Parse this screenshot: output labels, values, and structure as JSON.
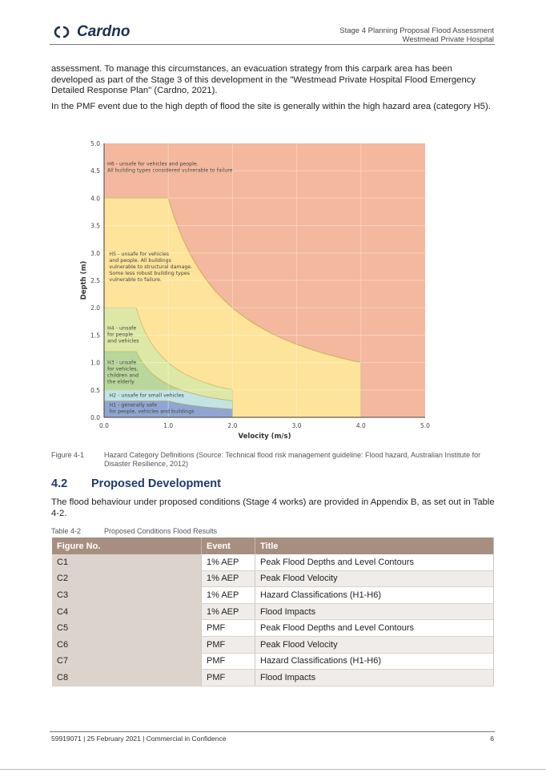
{
  "header": {
    "logo_text": "Cardno",
    "title_line1": "Stage 4 Planning Proposal Flood Assessment",
    "title_line2": "Westmead Private Hospital"
  },
  "body": {
    "para1": "assessment. To manage this circumstances, an evacuation strategy from this carpark area has been developed as part of the Stage 3 of this development in the \"Westmead Private Hospital Flood Emergency Detailed Response Plan\" (Cardno, 2021).",
    "para2": "In the PMF event due to the high depth of flood the site is generally within the high hazard area (category H5)."
  },
  "figure": {
    "label": "Figure 4-1",
    "caption": "Hazard Category Definitions (Source: Technical flood risk management guideline: Flood hazard, Australian Institute for Disaster Resilience, 2012)"
  },
  "chart_data": {
    "type": "area",
    "xlabel": "Velocity (m/s)",
    "ylabel": "Depth (m)",
    "xlim": [
      0,
      5
    ],
    "ylim": [
      0,
      5
    ],
    "x_ticks": [
      "0.0",
      "1.0",
      "2.0",
      "3.0",
      "4.0",
      "5.0"
    ],
    "y_ticks": [
      "0.0",
      "0.5",
      "1.0",
      "1.5",
      "2.0",
      "2.5",
      "3.0",
      "3.5",
      "4.0",
      "4.5",
      "5.0"
    ],
    "grid": true,
    "regions": [
      {
        "id": "H6",
        "color": "#f4b89e",
        "label": [
          "H6 - unsafe for vehicles and people.",
          "All building types considered vulnerable to failure"
        ],
        "max_depth": 5,
        "max_velocity": 5,
        "dv_limit": null
      },
      {
        "id": "H5",
        "color": "#fde49a",
        "label": [
          "H5 - unsafe for vehicles",
          "and people. All buildings",
          "vulnerable to structural damage.",
          "Some less robust building types",
          "vulnerable to failure."
        ],
        "max_depth": 4,
        "max_velocity": 4,
        "dv_limit": 4
      },
      {
        "id": "H4",
        "color": "#dde8a6",
        "label": [
          "H4 - unsafe",
          "for people",
          "and vehicles"
        ],
        "max_depth": 2,
        "max_velocity": 2,
        "dv_limit": 1
      },
      {
        "id": "H3",
        "color": "#b9d79a",
        "label": [
          "H3 - unsafe",
          "for vehicles,",
          "children and",
          "the elderly"
        ],
        "max_depth": 1.2,
        "max_velocity": 2,
        "dv_limit": 0.6
      },
      {
        "id": "H2",
        "color": "#c2e4e4",
        "label": [
          "H2 - unsafe for small vehicles"
        ],
        "max_depth": 0.5,
        "max_velocity": 2,
        "dv_limit": 0.6
      },
      {
        "id": "H1",
        "color": "#90a6d2",
        "label": [
          "H1 - generally safe",
          "for people, vehicles and buildings"
        ],
        "max_depth": 0.3,
        "max_velocity": 2,
        "dv_limit": 0.3
      }
    ]
  },
  "section": {
    "number": "4.2",
    "title": "Proposed Development"
  },
  "para3": "The flood behaviour under proposed conditions (Stage 4 works) are provided in Appendix B, as set out in Table 4-2.",
  "table": {
    "label": "Table 4-2",
    "caption": "Proposed Conditions Flood Results",
    "headers": [
      "Figure No.",
      "Event",
      "Title"
    ],
    "rows": [
      [
        "C1",
        "1% AEP",
        "Peak Flood Depths and Level Contours"
      ],
      [
        "C2",
        "1% AEP",
        "Peak Flood Velocity"
      ],
      [
        "C3",
        "1% AEP",
        "Hazard Classifications (H1-H6)"
      ],
      [
        "C4",
        "1% AEP",
        "Flood Impacts"
      ],
      [
        "C5",
        "PMF",
        "Peak Flood Depths and Level Contours"
      ],
      [
        "C6",
        "PMF",
        "Peak Flood Velocity"
      ],
      [
        "C7",
        "PMF",
        "Hazard Classifications (H1-H6)"
      ],
      [
        "C8",
        "PMF",
        "Flood Impacts"
      ]
    ]
  },
  "footer": {
    "text": "59919071 | 25 February 2021 | Commercial in Confidence",
    "page": "6"
  }
}
